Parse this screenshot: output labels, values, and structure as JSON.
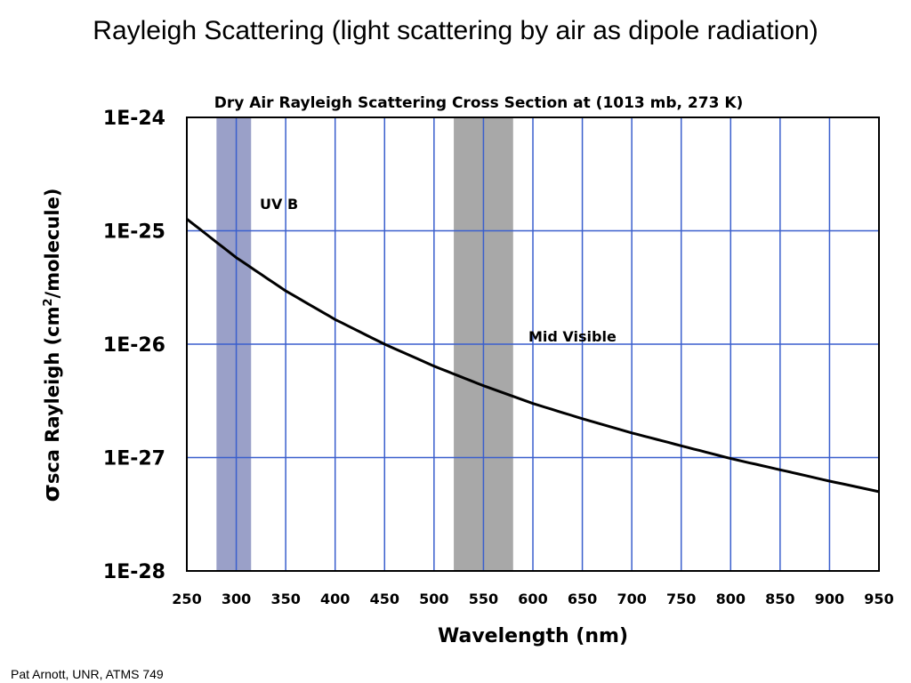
{
  "slide": {
    "title": "Rayleigh Scattering (light scattering by air as dipole radiation)",
    "credit": "Pat Arnott, UNR, ATMS 749"
  },
  "colors": {
    "grid": "#3a5fcd",
    "curve": "#000000",
    "uv_band": "#9aa0c8",
    "visible_band": "#a8a8a8",
    "uv_label": "#1f2fa8",
    "visible_label": "#1e6b1e"
  },
  "chart_data": {
    "type": "line",
    "title": "Dry Air Rayleigh Scattering Cross Section at (1013 mb, 273 K)",
    "xlabel": "Wavelength (nm)",
    "ylabel": {
      "sigma": "σ",
      "sub": "sca",
      "main": " Rayleigh (cm",
      "sup": "2",
      "unit": "/molecule)"
    },
    "xlim": [
      250,
      950
    ],
    "ylim": [
      1e-28,
      1e-24
    ],
    "yscale": "log",
    "grid": true,
    "x_ticks": [
      "250",
      "300",
      "350",
      "400",
      "450",
      "500",
      "550",
      "600",
      "650",
      "700",
      "750",
      "800",
      "850",
      "900",
      "950"
    ],
    "y_ticks": [
      "1E-24",
      "1E-25",
      "1E-26",
      "1E-27",
      "1E-28"
    ],
    "series": [
      {
        "x": [
          250,
          300,
          350,
          400,
          450,
          500,
          550,
          600,
          650,
          700,
          750,
          800,
          850,
          900,
          950
        ],
        "y": [
          1.27e-25,
          5.8e-26,
          2.95e-26,
          1.65e-26,
          1e-26,
          6.4e-27,
          4.3e-27,
          3e-27,
          2.2e-27,
          1.65e-27,
          1.27e-27,
          9.8e-28,
          7.8e-28,
          6.2e-28,
          5e-28
        ]
      }
    ],
    "bands": [
      {
        "label": "UV B",
        "x_range": [
          280,
          315
        ]
      },
      {
        "label": "Mid Visible",
        "x_range": [
          520,
          580
        ]
      }
    ]
  }
}
